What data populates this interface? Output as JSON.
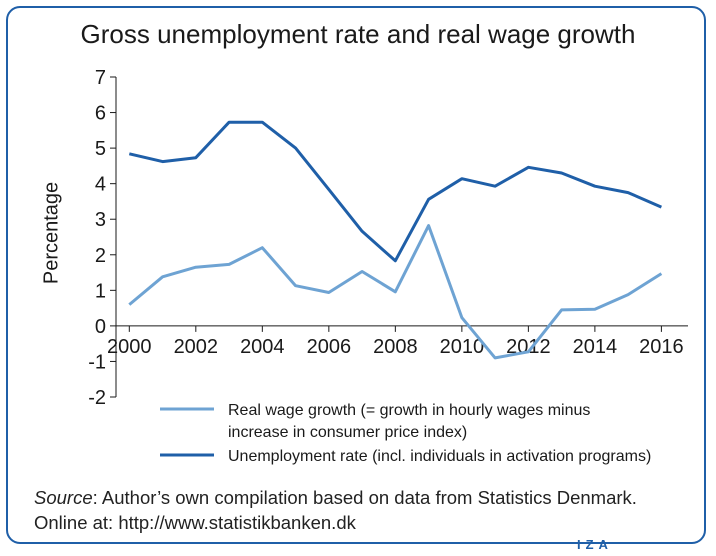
{
  "title": "Gross unemployment rate and real wage growth",
  "source": {
    "label": "Source",
    "text": ": Author’s own compilation based on data from Statistics Denmark. Online at: http://www.statistikbanken.dk"
  },
  "publisher": "IZA",
  "colors": {
    "border": "#1f5fa8",
    "wage": "#6ea3d3",
    "unemployment": "#1f5fa8",
    "axis": "#1a1a1a"
  },
  "chart_data": {
    "type": "line",
    "title": "Gross unemployment rate and real wage growth",
    "xlabel": "",
    "ylabel": "Percentage",
    "xlim": [
      1999.6,
      2016.8
    ],
    "ylim": [
      -2,
      7
    ],
    "xticks": [
      2000,
      2002,
      2004,
      2006,
      2008,
      2010,
      2012,
      2014,
      2016
    ],
    "yticks": [
      -2,
      -1,
      0,
      1,
      2,
      3,
      4,
      5,
      6,
      7
    ],
    "grid": false,
    "legend_position": "bottom",
    "series": [
      {
        "name": "Real wage growth (= growth in hourly wages minus increase in consumer price index)",
        "legend_lines": [
          "Real wage growth (= growth in hourly wages minus",
          "increase in consumer price index)"
        ],
        "color": "#6ea3d3",
        "x": [
          2000,
          2001,
          2002,
          2003,
          2004,
          2005,
          2006,
          2007,
          2008,
          2009,
          2010,
          2011,
          2012,
          2013,
          2014,
          2015,
          2016
        ],
        "values": [
          0.6,
          1.38,
          1.65,
          1.73,
          2.2,
          1.13,
          0.94,
          1.53,
          0.96,
          2.82,
          0.23,
          -0.9,
          -0.73,
          0.45,
          0.47,
          0.88,
          1.47
        ]
      },
      {
        "name": "Unemployment rate (incl. individuals in activation programs)",
        "legend_lines": [
          "Unemployment rate (incl. individuals in activation programs)"
        ],
        "color": "#1f5fa8",
        "x": [
          2000,
          2001,
          2002,
          2003,
          2004,
          2005,
          2006,
          2007,
          2008,
          2009,
          2010,
          2011,
          2012,
          2013,
          2014,
          2015,
          2016
        ],
        "values": [
          4.84,
          4.62,
          4.73,
          5.73,
          5.73,
          5.0,
          3.84,
          2.66,
          1.83,
          3.56,
          4.14,
          3.93,
          4.46,
          4.3,
          3.93,
          3.75,
          3.34
        ]
      }
    ]
  }
}
